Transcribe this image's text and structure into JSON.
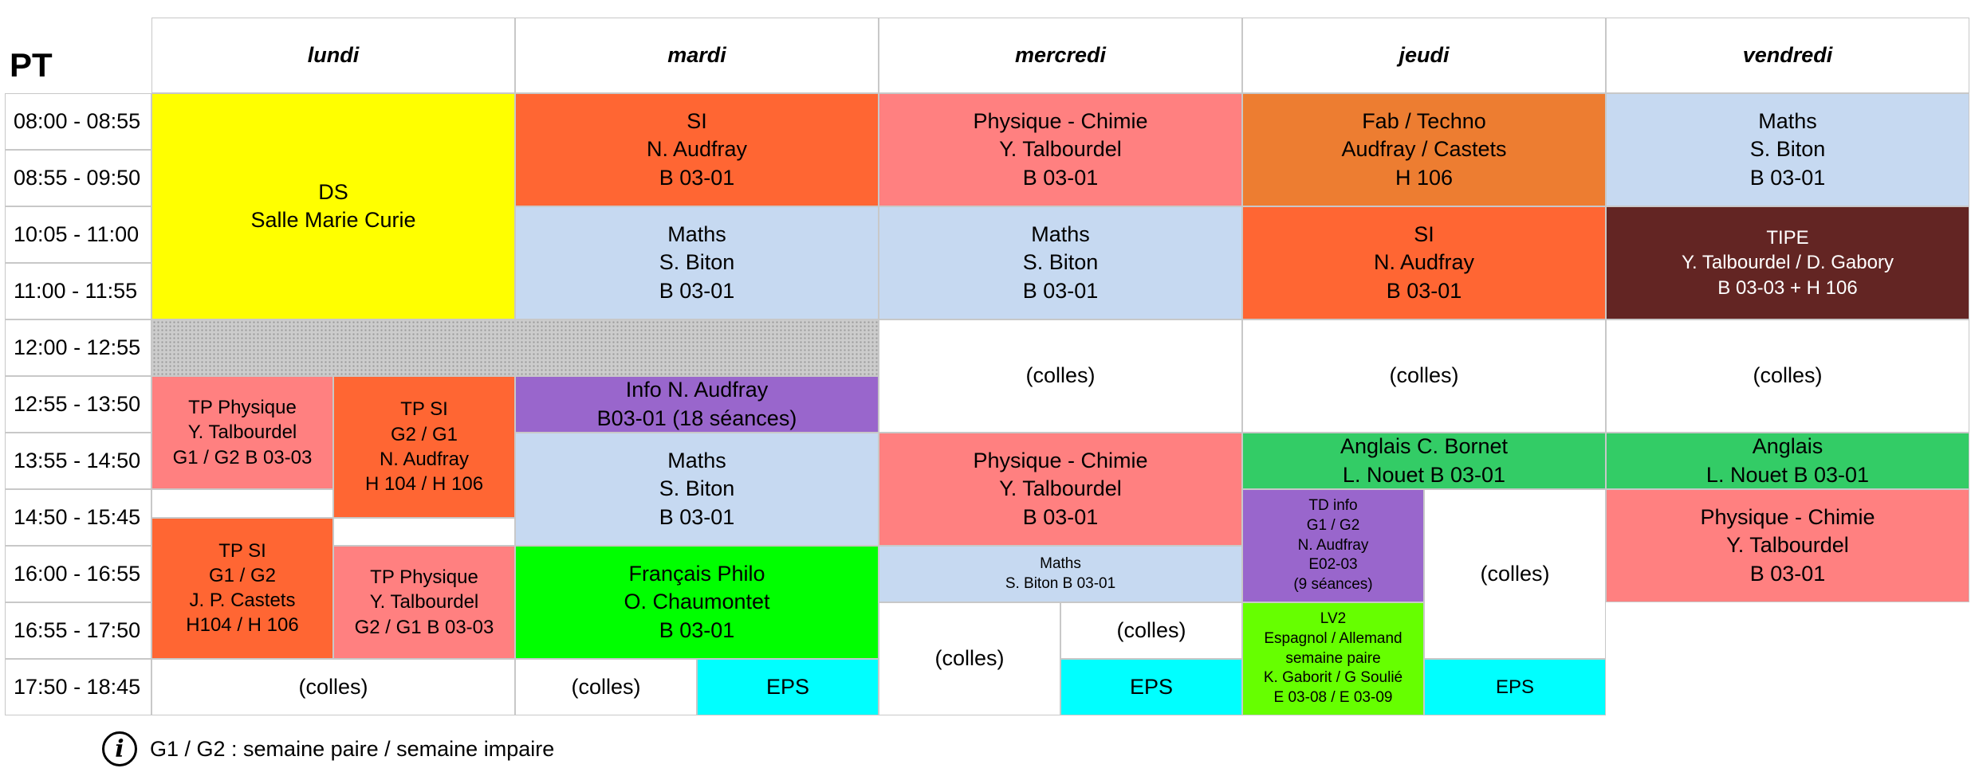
{
  "corner_label": "PT",
  "days": [
    "lundi",
    "mardi",
    "mercredi",
    "jeudi",
    "vendredi"
  ],
  "time_slots": [
    "08:00 - 08:55",
    "08:55 - 09:50",
    "10:05 - 11:00",
    "11:00 - 11:55",
    "12:00 - 12:55",
    "12:55 - 13:50",
    "13:55 - 14:50",
    "14:50 - 15:45",
    "16:00 - 16:55",
    "16:55 - 17:50",
    "17:50 - 18:45"
  ],
  "colors": {
    "ds": "#ffff00",
    "si": "#ff6633",
    "physique": "#ff8080",
    "maths": "#c6d9f1",
    "fab": "#ed7d31",
    "tipe": "#632523",
    "info": "#9966cc",
    "eps": "#00ffff",
    "francais": "#00ff00",
    "anglais": "#33cc66",
    "lv2": "#66ff00",
    "white": "#ffffff",
    "lunch": "#cccccc"
  },
  "events": [
    {
      "name": "ds-block",
      "text": "DS\nSalle Marie Curie",
      "color": "ds",
      "day": 0,
      "half": "full",
      "start": 0,
      "end": 4,
      "size": "L",
      "dark": false
    },
    {
      "name": "lunch-lundi",
      "text": "",
      "color": "lunch",
      "day": 0,
      "half": "full",
      "start": 4,
      "end": 5,
      "size": "L",
      "dark": false,
      "pattern": true
    },
    {
      "name": "tp-physique-lundi-1",
      "text": "TP Physique\nY. Talbourdel\nG1 / G2 B 03-03",
      "color": "physique",
      "day": 0,
      "half": "left",
      "start": 5,
      "end": 7,
      "size": "M",
      "dark": false
    },
    {
      "name": "tp-si-lundi-1",
      "text": "TP SI\nG2 / G1\nN. Audfray\nH 104 / H 106",
      "color": "si",
      "day": 0,
      "half": "right",
      "start": 5,
      "end": 7.5,
      "size": "M",
      "dark": false
    },
    {
      "name": "gap-lundi-left",
      "text": "",
      "color": "white",
      "day": 0,
      "half": "left",
      "start": 7,
      "end": 7.5,
      "size": "M",
      "dark": false
    },
    {
      "name": "gap-lundi-right",
      "text": "",
      "color": "white",
      "day": 0,
      "half": "right",
      "start": 7.5,
      "end": 8,
      "size": "M",
      "dark": false
    },
    {
      "name": "tp-si-lundi-2",
      "text": "TP SI\nG1 / G2\nJ. P. Castets\nH104 / H 106",
      "color": "si",
      "day": 0,
      "half": "left",
      "start": 7.5,
      "end": 10,
      "size": "M",
      "dark": false
    },
    {
      "name": "tp-physique-lundi-2",
      "text": "TP Physique\nY. Talbourdel\nG2 / G1 B 03-03",
      "color": "physique",
      "day": 0,
      "half": "right",
      "start": 8,
      "end": 10,
      "size": "M",
      "dark": false
    },
    {
      "name": "colles-lundi",
      "text": "(colles)",
      "color": "white",
      "day": 0,
      "half": "full",
      "start": 10,
      "end": 11,
      "size": "L",
      "dark": false
    },
    {
      "name": "si-mardi",
      "text": "SI\nN. Audfray\nB 03-01",
      "color": "si",
      "day": 1,
      "half": "full",
      "start": 0,
      "end": 2,
      "size": "L",
      "dark": false
    },
    {
      "name": "maths-mardi-1",
      "text": "Maths\nS. Biton\nB 03-01",
      "color": "maths",
      "day": 1,
      "half": "full",
      "start": 2,
      "end": 4,
      "size": "L",
      "dark": false
    },
    {
      "name": "lunch-mardi",
      "text": "",
      "color": "lunch",
      "day": 1,
      "half": "full",
      "start": 4,
      "end": 5,
      "size": "L",
      "dark": false,
      "pattern": true
    },
    {
      "name": "info-mardi",
      "text": "Info N. Audfray\nB03-01 (18 séances)",
      "color": "info",
      "day": 1,
      "half": "full",
      "start": 5,
      "end": 6,
      "size": "L",
      "dark": false
    },
    {
      "name": "maths-mardi-2",
      "text": "Maths\nS. Biton\nB 03-01",
      "color": "maths",
      "day": 1,
      "half": "full",
      "start": 6,
      "end": 8,
      "size": "L",
      "dark": false
    },
    {
      "name": "francais-mardi",
      "text": "Français Philo\nO. Chaumontet\nB 03-01",
      "color": "francais",
      "day": 1,
      "half": "full",
      "start": 8,
      "end": 10,
      "size": "L",
      "dark": false
    },
    {
      "name": "colles-mardi",
      "text": "(colles)",
      "color": "white",
      "day": 1,
      "half": "left",
      "start": 10,
      "end": 11,
      "size": "L",
      "dark": false
    },
    {
      "name": "eps-mardi",
      "text": "EPS",
      "color": "eps",
      "day": 1,
      "half": "right",
      "start": 10,
      "end": 11,
      "size": "L",
      "dark": false
    },
    {
      "name": "physique-mercredi-1",
      "text": "Physique - Chimie\nY. Talbourdel\nB 03-01",
      "color": "physique",
      "day": 2,
      "half": "full",
      "start": 0,
      "end": 2,
      "size": "L",
      "dark": false
    },
    {
      "name": "maths-mercredi-1",
      "text": "Maths\nS. Biton\nB 03-01",
      "color": "maths",
      "day": 2,
      "half": "full",
      "start": 2,
      "end": 4,
      "size": "L",
      "dark": false
    },
    {
      "name": "colles-mercredi-1",
      "text": "(colles)",
      "color": "white",
      "day": 2,
      "half": "full",
      "start": 4,
      "end": 6,
      "size": "L",
      "dark": false
    },
    {
      "name": "physique-mercredi-2",
      "text": "Physique - Chimie\nY. Talbourdel\nB 03-01",
      "color": "physique",
      "day": 2,
      "half": "full",
      "start": 6,
      "end": 8,
      "size": "L",
      "dark": false
    },
    {
      "name": "maths-mercredi-2",
      "text": "Maths\nS. Biton B 03-01",
      "color": "maths",
      "day": 2,
      "half": "full",
      "start": 8,
      "end": 9,
      "size": "S",
      "dark": false
    },
    {
      "name": "colles-mercredi-2",
      "text": "(colles)",
      "color": "white",
      "day": 2,
      "half": "left",
      "start": 9,
      "end": 11,
      "size": "L",
      "dark": false
    },
    {
      "name": "colles-mercredi-3",
      "text": "(colles)",
      "color": "white",
      "day": 2,
      "half": "right",
      "start": 9,
      "end": 10,
      "size": "L",
      "dark": false
    },
    {
      "name": "eps-mercredi",
      "text": "EPS",
      "color": "eps",
      "day": 2,
      "half": "right",
      "start": 10,
      "end": 11,
      "size": "L",
      "dark": false
    },
    {
      "name": "fab-jeudi",
      "text": "Fab / Techno\nAudfray / Castets\nH 106",
      "color": "fab",
      "day": 3,
      "half": "full",
      "start": 0,
      "end": 2,
      "size": "L",
      "dark": false
    },
    {
      "name": "si-jeudi",
      "text": "SI\nN. Audfray\nB 03-01",
      "color": "si",
      "day": 3,
      "half": "full",
      "start": 2,
      "end": 4,
      "size": "L",
      "dark": false
    },
    {
      "name": "colles-jeudi-1",
      "text": "(colles)",
      "color": "white",
      "day": 3,
      "half": "full",
      "start": 4,
      "end": 6,
      "size": "L",
      "dark": false
    },
    {
      "name": "anglais-jeudi",
      "text": "Anglais C. Bornet\nL. Nouet B 03-01",
      "color": "anglais",
      "day": 3,
      "half": "full",
      "start": 6,
      "end": 7,
      "size": "L",
      "dark": false
    },
    {
      "name": "td-info-jeudi",
      "text": "TD info\nG1 / G2\nN. Audfray\nE02-03\n(9 séances)",
      "color": "info",
      "day": 3,
      "half": "left",
      "start": 7,
      "end": 9,
      "size": "S",
      "dark": false
    },
    {
      "name": "colles-jeudi-2",
      "text": "(colles)",
      "color": "white",
      "day": 3,
      "half": "right",
      "start": 7,
      "end": 10,
      "size": "L",
      "dark": false
    },
    {
      "name": "lv2-jeudi",
      "text": "LV2\nEspagnol / Allemand\nsemaine paire\nK. Gaborit / G Soulié\nE 03-08 / E 03-09",
      "color": "lv2",
      "day": 3,
      "half": "left",
      "start": 9,
      "end": 11,
      "size": "S",
      "dark": false
    },
    {
      "name": "eps-jeudi",
      "text": "EPS",
      "color": "eps",
      "day": 3,
      "half": "right",
      "start": 10,
      "end": 11,
      "size": "M",
      "dark": false
    },
    {
      "name": "maths-vendredi",
      "text": "Maths\nS. Biton\nB 03-01",
      "color": "maths",
      "day": 4,
      "half": "full",
      "start": 0,
      "end": 2,
      "size": "L",
      "dark": false
    },
    {
      "name": "tipe-vendredi",
      "text": "TIPE\nY. Talbourdel / D. Gabory\nB 03-03 + H 106",
      "color": "tipe",
      "day": 4,
      "half": "full",
      "start": 2,
      "end": 4,
      "size": "M",
      "dark": true
    },
    {
      "name": "colles-vendredi",
      "text": "(colles)",
      "color": "white",
      "day": 4,
      "half": "full",
      "start": 4,
      "end": 6,
      "size": "L",
      "dark": false
    },
    {
      "name": "anglais-vendredi",
      "text": "Anglais\nL. Nouet B 03-01",
      "color": "anglais",
      "day": 4,
      "half": "full",
      "start": 6,
      "end": 7,
      "size": "L",
      "dark": false
    },
    {
      "name": "physique-vendredi",
      "text": "Physique - Chimie\nY. Talbourdel\nB 03-01",
      "color": "physique",
      "day": 4,
      "half": "full",
      "start": 7,
      "end": 9,
      "size": "L",
      "dark": false
    }
  ],
  "footnote": {
    "icon": "info-icon",
    "icon_glyph": "i",
    "text": "G1 / G2 : semaine paire / semaine impaire"
  }
}
